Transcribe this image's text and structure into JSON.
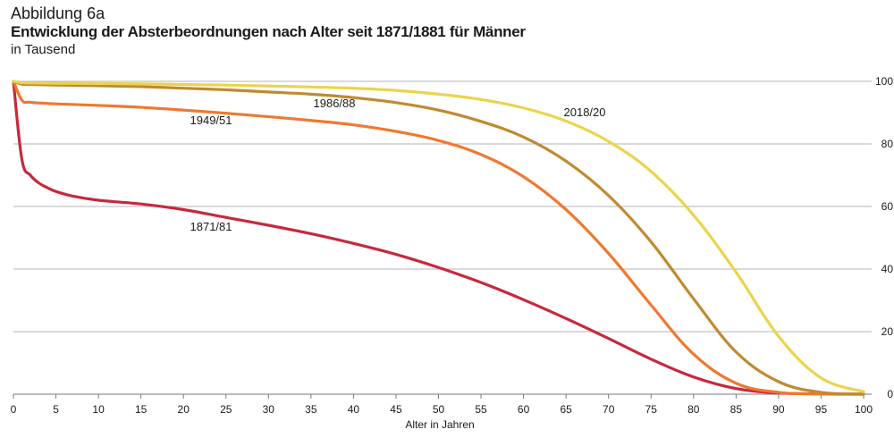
{
  "header": {
    "label": "Abbildung 6a",
    "title": "Entwicklung der Absterbeordnungen nach Alter seit 1871/1881 für Männer",
    "subtitle": "in Tausend"
  },
  "chart_data": {
    "type": "line",
    "xlabel": "Alter in Jahren",
    "ylabel": "in Tausend",
    "xlim": [
      0,
      100
    ],
    "ylim": [
      0,
      100
    ],
    "x_ticks": [
      0,
      5,
      10,
      15,
      20,
      25,
      30,
      35,
      40,
      45,
      50,
      55,
      60,
      65,
      70,
      75,
      80,
      85,
      90,
      95,
      100
    ],
    "y_ticks": [
      0,
      20,
      40,
      60,
      80,
      100
    ],
    "grid": "horizontal",
    "legend": "none (labels on curves)",
    "series": [
      {
        "name": "1871/81",
        "color": "#c8283c",
        "x": [
          0,
          1,
          2,
          3,
          4,
          5,
          7,
          10,
          15,
          20,
          25,
          30,
          35,
          40,
          45,
          50,
          55,
          60,
          65,
          70,
          75,
          80,
          85,
          90,
          95,
          100
        ],
        "values": [
          100,
          75,
          70,
          67.5,
          66,
          64.8,
          63.3,
          62,
          60.8,
          59,
          56.5,
          54,
          51.3,
          48.2,
          44.7,
          40.5,
          35.7,
          30.2,
          24.2,
          17.8,
          11.2,
          5.5,
          1.8,
          0.4,
          0.1,
          0
        ]
      },
      {
        "name": "1949/51",
        "color": "#f07830",
        "x": [
          0,
          1,
          2,
          5,
          10,
          15,
          20,
          25,
          30,
          35,
          40,
          45,
          50,
          55,
          60,
          65,
          70,
          75,
          80,
          85,
          90,
          95,
          100
        ],
        "values": [
          100,
          94,
          93.3,
          92.8,
          92.3,
          91.7,
          90.8,
          89.8,
          88.7,
          87.5,
          86.1,
          84,
          81.1,
          76.6,
          69.5,
          59,
          45,
          28.5,
          12.8,
          3.5,
          0.6,
          0.05,
          0
        ]
      },
      {
        "name": "1986/88",
        "color": "#c08a30",
        "x": [
          0,
          1,
          2,
          5,
          10,
          15,
          20,
          25,
          30,
          35,
          40,
          45,
          50,
          55,
          60,
          65,
          70,
          75,
          80,
          85,
          90,
          95,
          100
        ],
        "values": [
          100,
          99.1,
          99,
          98.8,
          98.6,
          98.3,
          97.8,
          97.3,
          96.6,
          95.9,
          94.8,
          93.2,
          90.8,
          87.2,
          82.2,
          74.5,
          63.5,
          48.7,
          30.5,
          13.5,
          4,
          0.6,
          0.05
        ]
      },
      {
        "name": "2018/20",
        "color": "#ecd34c",
        "x": [
          0,
          1,
          2,
          5,
          10,
          15,
          20,
          25,
          30,
          35,
          40,
          45,
          50,
          55,
          60,
          65,
          70,
          75,
          80,
          85,
          90,
          95,
          100
        ],
        "values": [
          100,
          99.6,
          99.5,
          99.4,
          99.3,
          99.2,
          99,
          98.8,
          98.5,
          98.2,
          97.8,
          97.1,
          95.9,
          94.2,
          91.5,
          87.3,
          80.8,
          71.2,
          57.2,
          39,
          18.5,
          5.2,
          0.8
        ]
      }
    ]
  }
}
